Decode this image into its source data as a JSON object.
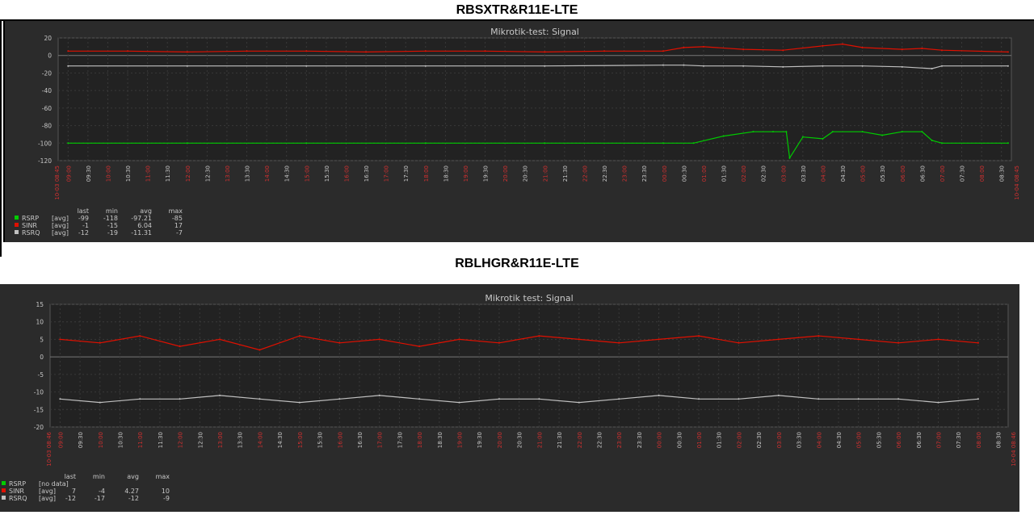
{
  "page": {
    "heading1": "RBSXTR&R11E-LTE",
    "heading2": "RBLHGR&R11E-LTE"
  },
  "colors": {
    "background": "#2b2b2b",
    "grid": "#3a3a3a",
    "axis_text": "#c8c8c8",
    "highlight_tick": "#d03030",
    "rsrp": "#00cc00",
    "sinr": "#e01000",
    "rsrq": "#c0c0c0"
  },
  "legend_columns": [
    "last",
    "min",
    "avg",
    "max"
  ],
  "chart_data": [
    {
      "type": "line",
      "title": "Mikrotik-test: Signal",
      "ylim": [
        -120,
        20
      ],
      "y_ticks": [
        "20",
        "0",
        "-20",
        "-40",
        "-60",
        "-80",
        "-100",
        "-120"
      ],
      "x_start_label": "10-03 08:45",
      "x_end_label": "10-04 08:45",
      "x_ticks": [
        "09:00",
        "09:30",
        "10:00",
        "10:30",
        "11:00",
        "11:30",
        "12:00",
        "12:30",
        "13:00",
        "13:30",
        "14:00",
        "14:30",
        "15:00",
        "15:30",
        "16:00",
        "16:30",
        "17:00",
        "17:30",
        "18:00",
        "18:30",
        "19:00",
        "19:30",
        "20:00",
        "20:30",
        "21:00",
        "21:30",
        "22:00",
        "22:30",
        "23:00",
        "23:30",
        "00:00",
        "00:30",
        "01:00",
        "01:30",
        "02:00",
        "02:30",
        "03:00",
        "03:30",
        "04:00",
        "04:30",
        "05:00",
        "05:30",
        "06:00",
        "06:30",
        "07:00",
        "07:30",
        "08:00",
        "08:30"
      ],
      "grid": true,
      "series": [
        {
          "name": "RSRP",
          "agg": "[avg]",
          "color": "#00cc00",
          "last": "-99",
          "min": "-118",
          "avg": "-97.21",
          "max": "-85",
          "x": [
            "09:00",
            "12:00",
            "15:00",
            "18:00",
            "21:00",
            "23:59",
            "00:45",
            "01:30",
            "02:15",
            "02:45",
            "03:05",
            "03:10",
            "03:30",
            "04:00",
            "04:15",
            "05:00",
            "05:30",
            "06:00",
            "06:30",
            "06:45",
            "07:00",
            "08:40"
          ],
          "y": [
            -100,
            -100,
            -100,
            -100,
            -100,
            -100,
            -100,
            -92,
            -87,
            -87,
            -87,
            -117,
            -93,
            -95,
            -87,
            -87,
            -91,
            -87,
            -87,
            -97,
            -100,
            -100
          ]
        },
        {
          "name": "SINR",
          "agg": "[avg]",
          "color": "#e01000",
          "last": "-1",
          "min": "-15",
          "avg": "6.04",
          "max": "17",
          "x": [
            "09:00",
            "10:30",
            "12:00",
            "13:30",
            "15:00",
            "16:30",
            "18:00",
            "19:30",
            "21:00",
            "22:30",
            "23:59",
            "00:30",
            "01:00",
            "02:00",
            "03:00",
            "04:00",
            "04:30",
            "05:00",
            "06:00",
            "06:30",
            "07:00",
            "08:40"
          ],
          "y": [
            5,
            5,
            4,
            5,
            5,
            4,
            5,
            5,
            4,
            5,
            5,
            9,
            10,
            7,
            6,
            11,
            13,
            9,
            7,
            8,
            6,
            4
          ]
        },
        {
          "name": "RSRQ",
          "agg": "[avg]",
          "color": "#c0c0c0",
          "last": "-12",
          "min": "-19",
          "avg": "-11.31",
          "max": "-7",
          "x": [
            "09:00",
            "12:00",
            "15:00",
            "18:00",
            "21:00",
            "23:59",
            "00:30",
            "01:00",
            "02:00",
            "03:00",
            "04:00",
            "05:00",
            "06:00",
            "06:45",
            "07:00",
            "08:40"
          ],
          "y": [
            -12,
            -12,
            -12,
            -12,
            -12,
            -11,
            -11,
            -12,
            -12,
            -13,
            -12,
            -12,
            -13,
            -15,
            -12,
            -12
          ]
        }
      ]
    },
    {
      "type": "line",
      "title": "Mikrotik    test: Signal",
      "ylim": [
        -20,
        15
      ],
      "y_ticks": [
        "15",
        "10",
        "5",
        "0",
        "-5",
        "-10",
        "-15",
        "-20"
      ],
      "x_start_label": "10-03 08:46",
      "x_end_label": "10-04 08:46",
      "x_ticks": [
        "09:00",
        "09:30",
        "10:00",
        "10:30",
        "11:00",
        "11:30",
        "12:00",
        "12:30",
        "13:00",
        "13:30",
        "14:00",
        "14:30",
        "15:00",
        "15:30",
        "16:00",
        "16:30",
        "17:00",
        "17:30",
        "18:00",
        "18:30",
        "19:00",
        "19:30",
        "20:00",
        "20:30",
        "21:00",
        "21:30",
        "22:00",
        "22:30",
        "23:00",
        "23:30",
        "00:00",
        "00:30",
        "01:00",
        "01:30",
        "02:00",
        "02:30",
        "03:00",
        "03:30",
        "04:00",
        "04:30",
        "05:00",
        "05:30",
        "06:00",
        "06:30",
        "07:00",
        "07:30",
        "08:00",
        "08:30"
      ],
      "grid": true,
      "series": [
        {
          "name": "RSRP",
          "agg": "[no data]",
          "color": "#00cc00",
          "last": "",
          "min": "",
          "avg": "",
          "max": "",
          "x": [],
          "y": []
        },
        {
          "name": "SINR",
          "agg": "[avg]",
          "color": "#e01000",
          "last": "7",
          "min": "-4",
          "avg": "4.27",
          "max": "10",
          "x": [
            "09:00",
            "10:00",
            "11:00",
            "12:00",
            "13:00",
            "14:00",
            "15:00",
            "16:00",
            "17:00",
            "18:00",
            "19:00",
            "20:00",
            "21:00",
            "22:00",
            "23:00",
            "00:00",
            "01:00",
            "02:00",
            "03:00",
            "04:00",
            "05:00",
            "06:00",
            "07:00",
            "08:00"
          ],
          "y": [
            5,
            4,
            6,
            3,
            5,
            2,
            6,
            4,
            5,
            3,
            5,
            4,
            6,
            5,
            4,
            5,
            6,
            4,
            5,
            6,
            5,
            4,
            5,
            4
          ]
        },
        {
          "name": "RSRQ",
          "agg": "[avg]",
          "color": "#c0c0c0",
          "last": "-12",
          "min": "-17",
          "avg": "-12",
          "max": "-9",
          "x": [
            "09:00",
            "10:00",
            "11:00",
            "12:00",
            "13:00",
            "14:00",
            "15:00",
            "16:00",
            "17:00",
            "18:00",
            "19:00",
            "20:00",
            "21:00",
            "22:00",
            "23:00",
            "00:00",
            "01:00",
            "02:00",
            "03:00",
            "04:00",
            "05:00",
            "06:00",
            "07:00",
            "08:00"
          ],
          "y": [
            -12,
            -13,
            -12,
            -12,
            -11,
            -12,
            -13,
            -12,
            -11,
            -12,
            -13,
            -12,
            -12,
            -13,
            -12,
            -11,
            -12,
            -12,
            -11,
            -12,
            -12,
            -12,
            -13,
            -12
          ]
        }
      ]
    }
  ]
}
